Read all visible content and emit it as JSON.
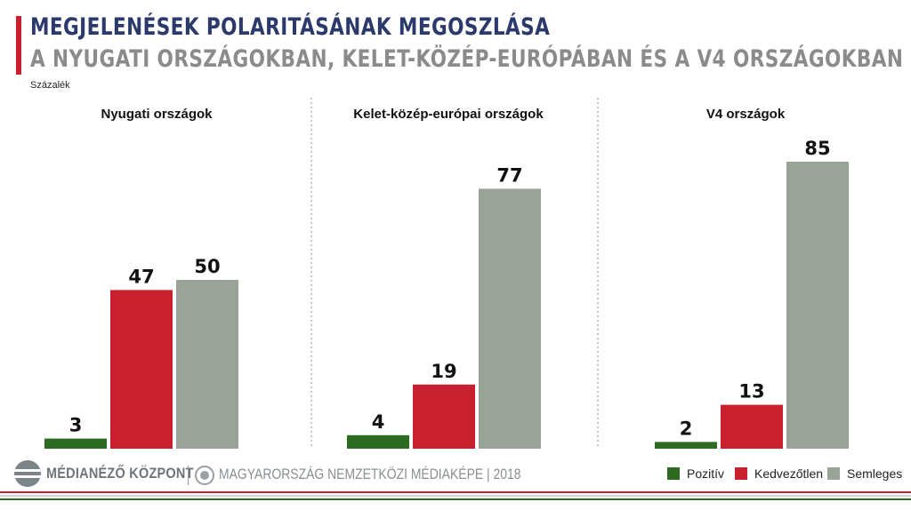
{
  "header": {
    "title": "MEGJELENÉSEK POLARITÁSÁNAK MEGOSZLÁSA",
    "subtitle": "A NYUGATI ORSZÁGOKBAN, KELET-KÖZÉP-EURÓPÁBAN ÉS A V4 ORSZÁGOKBAN",
    "unit": "Százalék"
  },
  "footer": {
    "logo_text": "MÉDIANÉZŐ KÖZPONT",
    "tagline": "MAGYARORSZÁG NEMZETKÖZI MÉDIAKÉPE | 2018",
    "logo_icon": "medianezo-logo-icon",
    "globe_icon": "globe-icon"
  },
  "colors": {
    "Pozitív": "#2e6b22",
    "Kedvezőtlen": "#c8202f",
    "Semleges": "#9aa397",
    "title": "#2b3a6b",
    "subtitle": "#8a8c8b",
    "accent": "#c8202f"
  },
  "chart_data": [
    {
      "type": "bar",
      "title": "Nyugati országok",
      "categories": [
        "Pozitív",
        "Kedvezőtlen",
        "Semleges"
      ],
      "values": [
        3,
        47,
        50
      ],
      "ylim": [
        0,
        100
      ]
    },
    {
      "type": "bar",
      "title": "Kelet-közép-európai országok",
      "categories": [
        "Pozitív",
        "Kedvezőtlen",
        "Semleges"
      ],
      "values": [
        4,
        19,
        77
      ],
      "ylim": [
        0,
        100
      ]
    },
    {
      "type": "bar",
      "title": "V4 országok",
      "categories": [
        "Pozitív",
        "Kedvezőtlen",
        "Semleges"
      ],
      "values": [
        2,
        13,
        85
      ],
      "ylim": [
        0,
        100
      ]
    }
  ],
  "legend": {
    "placement": "bottom-right",
    "items": [
      "Pozitív",
      "Kedvezőtlen",
      "Semleges"
    ]
  }
}
